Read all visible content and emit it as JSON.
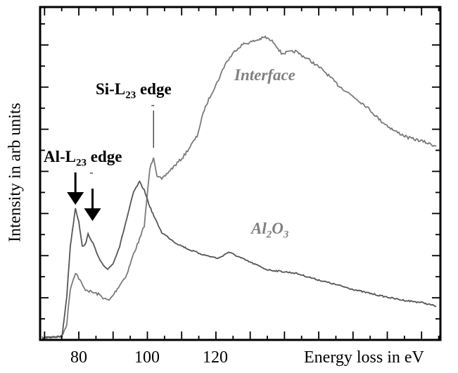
{
  "chart_data": {
    "type": "line",
    "xlabel": "Energy loss in eV",
    "ylabel": "Intensity in arb units",
    "xlim": [
      68.7,
      185.5
    ],
    "ylim": [
      0,
      15.8
    ],
    "x_ticks_labeled": [
      "80",
      "100",
      "120"
    ],
    "x_tick_values": [
      80,
      100,
      120
    ],
    "y_tick_labels": "none",
    "grid": false,
    "colors": {
      "Interface": "#7a7a7a",
      "Al2O3": "#555555",
      "axes": "#000000"
    },
    "series": [
      {
        "name": "Interface",
        "x": [
          69.3,
          75.1,
          76.5,
          77.5,
          79.0,
          80.0,
          81.6,
          83.7,
          85.7,
          87.8,
          88.8,
          89.9,
          91.9,
          94.0,
          96.0,
          98.1,
          99.1,
          100.1,
          100.7,
          101.8,
          102.8,
          104.2,
          106.3,
          110.4,
          114.5,
          116.6,
          118.6,
          120.7,
          122.7,
          125.8,
          127.8,
          130.9,
          134.4,
          137.1,
          139.1,
          143.2,
          147.4,
          151.5,
          155.6,
          159.7,
          163.8,
          167.9,
          172.0,
          176.1,
          180.2,
          184.3
        ],
        "y": [
          0.1,
          0.17,
          0.77,
          2.43,
          3.2,
          2.93,
          2.43,
          2.27,
          2.17,
          1.93,
          1.87,
          2.1,
          2.6,
          3.1,
          4.1,
          4.93,
          5.43,
          7.1,
          8.1,
          8.7,
          7.83,
          7.6,
          8.0,
          8.67,
          9.67,
          10.93,
          11.67,
          12.33,
          13.1,
          13.77,
          14.03,
          14.17,
          14.37,
          14.1,
          13.6,
          13.7,
          13.27,
          12.77,
          12.1,
          11.6,
          11.1,
          10.43,
          9.93,
          9.6,
          9.43,
          9.2
        ]
      },
      {
        "name": "Al2O3",
        "x": [
          69.3,
          75.1,
          76.5,
          77.5,
          79.0,
          80.0,
          81.0,
          82.1,
          82.7,
          84.1,
          85.7,
          87.2,
          88.4,
          89.9,
          91.9,
          94.0,
          96.0,
          97.7,
          99.1,
          100.7,
          102.2,
          104.2,
          108.3,
          112.4,
          116.6,
          120.7,
          123.7,
          128.9,
          135.0,
          143.2,
          149.4,
          155.6,
          161.7,
          167.9,
          174.0,
          180.2,
          184.3
        ],
        "y": [
          0.1,
          0.17,
          2.1,
          4.43,
          6.27,
          5.6,
          4.43,
          4.6,
          5.03,
          4.6,
          3.93,
          3.5,
          3.37,
          3.6,
          4.43,
          5.77,
          7.03,
          7.5,
          7.1,
          6.33,
          5.77,
          5.1,
          4.6,
          4.27,
          4.03,
          3.87,
          4.17,
          3.77,
          3.33,
          3.17,
          2.87,
          2.6,
          2.33,
          2.1,
          1.9,
          1.77,
          1.6
        ]
      }
    ],
    "annotations": {
      "si_edge": {
        "prefix": "Si-L",
        "sub": "23",
        "suffix": " edge",
        "x": 101.8
      },
      "al_edge": {
        "prefix": "Al-L",
        "sub": "23",
        "suffix": " edge",
        "arrow_x": [
          79.0,
          84.0
        ]
      },
      "interface_label": "Interface",
      "al2o3_label": {
        "a": "Al",
        "s1": "2",
        "b": "O",
        "s2": "3"
      }
    }
  }
}
